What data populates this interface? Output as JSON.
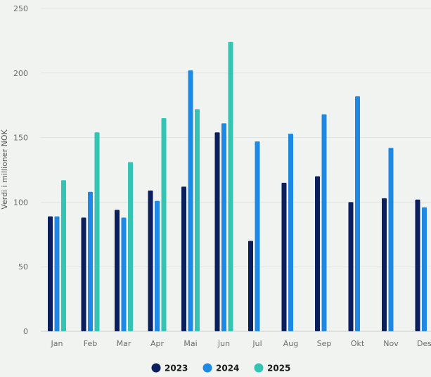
{
  "chart_data": {
    "type": "bar",
    "title": "",
    "xlabel": "",
    "ylabel": "Verdi i millioner NOK",
    "ylim": [
      0,
      250
    ],
    "yticks": [
      0,
      50,
      100,
      150,
      200,
      250
    ],
    "grid": true,
    "legend_position": "bottom-center",
    "categories": [
      "Jan",
      "Feb",
      "Mar",
      "Apr",
      "Mai",
      "Jun",
      "Jul",
      "Aug",
      "Sep",
      "Okt",
      "Nov",
      "Des"
    ],
    "series": [
      {
        "name": "2023",
        "color": "#0b1f5c",
        "values": [
          89,
          88,
          94,
          109,
          112,
          154,
          70,
          115,
          120,
          100,
          103,
          102
        ]
      },
      {
        "name": "2024",
        "color": "#1e88e5",
        "values": [
          89,
          108,
          88,
          101,
          202,
          161,
          147,
          153,
          168,
          182,
          142,
          96
        ]
      },
      {
        "name": "2025",
        "color": "#33c4b3",
        "values": [
          117,
          154,
          131,
          165,
          172,
          224,
          null,
          null,
          null,
          null,
          null,
          null
        ]
      }
    ]
  }
}
